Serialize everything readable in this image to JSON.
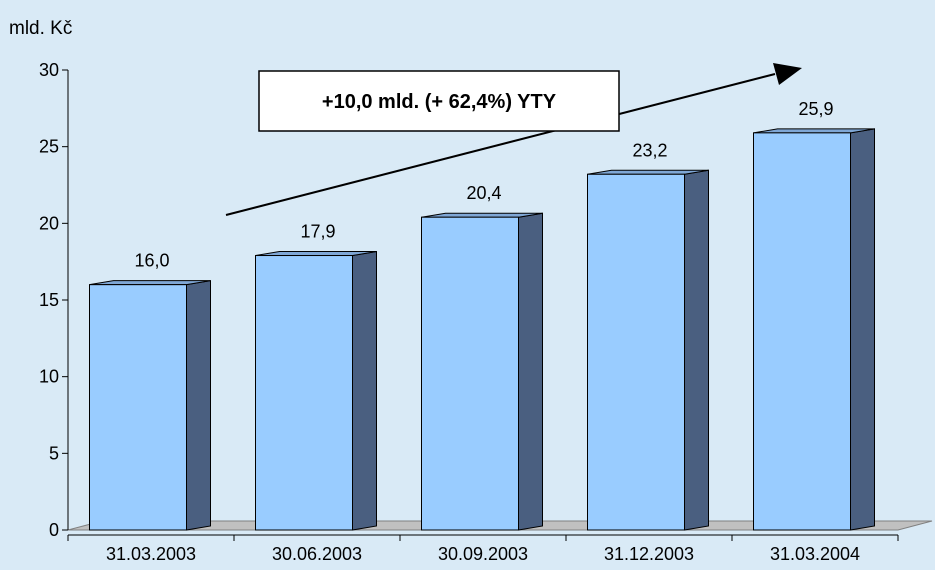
{
  "colors": {
    "background": "#d9eaf6",
    "bar_front": "#99ccff",
    "bar_side": "#4a5f80",
    "bar_top": "#7fa7d6",
    "floor": "#c0c0c0",
    "axis": "#000000",
    "callout_box": "#ffffff"
  },
  "chart_data": {
    "type": "bar",
    "style": "3d-column",
    "unit_label": "mld. Kč",
    "categories": [
      "31.03.2003",
      "30.06.2003",
      "30.09.2003",
      "31.12.2003",
      "31.03.2004"
    ],
    "values": [
      16.0,
      17.9,
      20.4,
      23.2,
      25.9
    ],
    "value_labels": [
      "16,0",
      "17,9",
      "20,4",
      "23,2",
      "25,9"
    ],
    "ylim": [
      0,
      30
    ],
    "y_ticks": [
      0,
      5,
      10,
      15,
      20,
      25,
      30
    ],
    "grid": false,
    "legend": "none",
    "annotation": {
      "text": "+10,0 mld. (+ 62,4%) YTY",
      "arrow": true
    }
  }
}
